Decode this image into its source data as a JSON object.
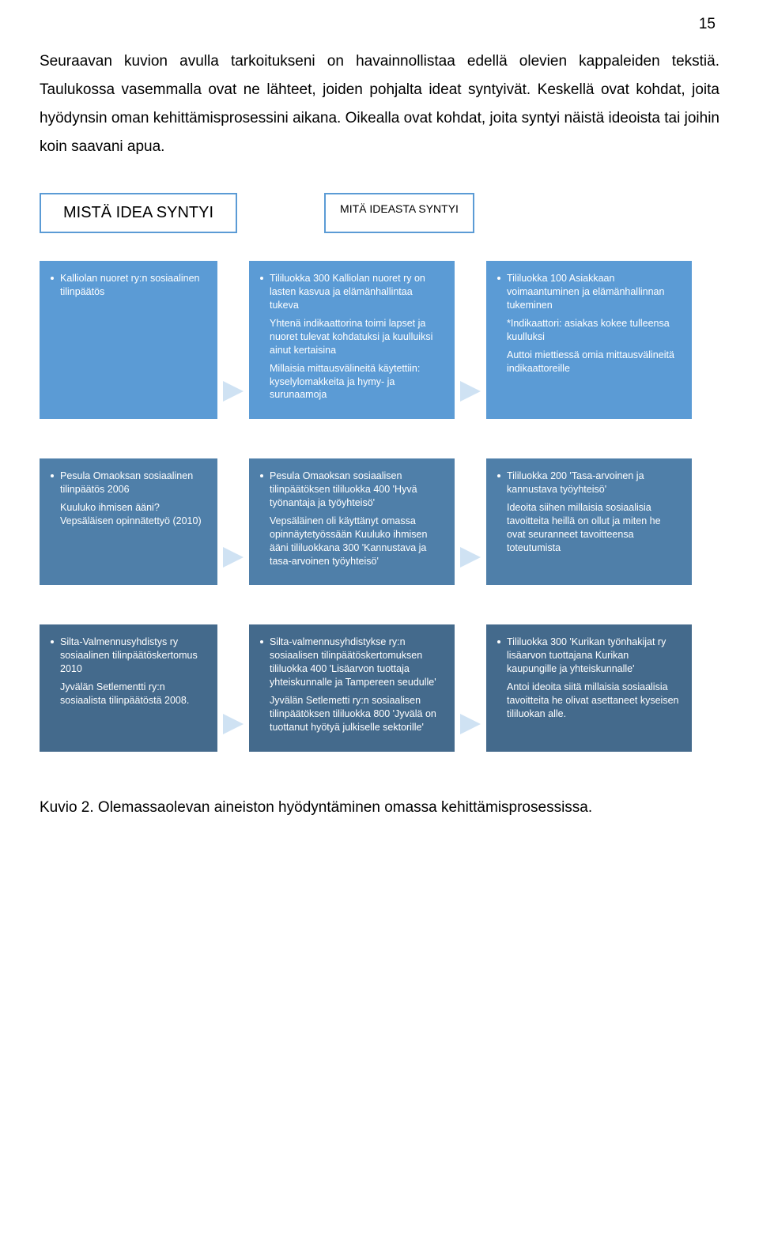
{
  "page_number": "15",
  "intro_text": "Seuraavan kuvion avulla tarkoitukseni on havainnollistaa edellä olevien kappaleiden tekstiä. Taulukossa vasemmalla ovat ne lähteet, joiden pohjalta ideat syntyivät. Keskellä ovat kohdat, joita hyödynsin oman kehittämisprosessini aikana. Oikealla ovat kohdat, joita syntyi näistä ideoista tai joihin koin saavani apua.",
  "headers": {
    "left": "MISTÄ IDEA SYNTYI",
    "right": "MITÄ IDEASTA SYNTYI"
  },
  "colors": {
    "row1": "#5b9bd5",
    "row2": "#4f7fa9",
    "row3": "#446a8c",
    "arrow": "#cfe2f3",
    "border": "#5b9bd5"
  },
  "rows": [
    {
      "color": "#5b9bd5",
      "left": {
        "bullets": [
          "Kalliolan nuoret ry:n sosiaalinen tilinpäätös"
        ]
      },
      "middle": {
        "bullets": [
          "Tililuokka 300 Kalliolan nuoret ry on lasten kasvua ja elämänhallintaa tukeva"
        ],
        "subs": [
          "Yhtenä indikaattorina toimi lapset ja nuoret tulevat kohdatuksi ja kuulluiksi ainut kertaisina",
          "Millaisia mittausvälineitä käytettiin: kyselylomakkeita ja hymy- ja surunaamoja"
        ]
      },
      "right": {
        "bullets": [
          "Tililuokka 100 Asiakkaan voimaantuminen ja elämänhallinnan tukeminen"
        ],
        "subs": [
          "*Indikaattori: asiakas kokee tulleensa kuulluksi",
          "Auttoi miettiessä omia mittausvälineitä indikaattoreille"
        ]
      }
    },
    {
      "color": "#4f7fa9",
      "left": {
        "bullets": [
          "Pesula Omaoksan sosiaalinen tilinpäätös 2006"
        ],
        "subs": [
          "Kuuluko ihmisen ääni? Vepsäläisen opinnätettyö (2010)"
        ]
      },
      "middle": {
        "bullets": [
          "Pesula Omaoksan sosiaalisen tilinpäätöksen tililuokka 400 'Hyvä työnantaja ja työyhteisö'"
        ],
        "subs": [
          "Vepsäläinen oli käyttänyt omassa opinnäytetyössään Kuuluko ihmisen ääni tililuokkana 300 'Kannustava ja tasa-arvoinen työyhteisö'"
        ]
      },
      "right": {
        "bullets": [
          "Tililuokka 200 'Tasa-arvoinen ja kannustava työyhteisö'"
        ],
        "subs": [
          "Ideoita siihen millaisia sosiaalisia tavoitteita heillä on ollut ja miten he ovat seuranneet tavoitteensa toteutumista"
        ]
      }
    },
    {
      "color": "#446a8c",
      "left": {
        "bullets": [
          "Silta-Valmennusyhdistys ry sosiaalinen tilinpäätöskertomus 2010"
        ],
        "subs": [
          "Jyvälän Setlementti ry:n sosiaalista tilinpäätöstä 2008."
        ]
      },
      "middle": {
        "bullets": [
          "Silta-valmennusyhdistykse ry:n sosiaalisen tilinpäätöskertomuksen tililuokka 400 'Lisäarvon tuottaja yhteiskunnalle ja Tampereen seudulle'"
        ],
        "subs": [
          "Jyvälän Setlemetti ry:n sosiaalisen tilinpäätöksen tililuokka 800 'Jyvälä on tuottanut hyötyä julkiselle sektorille'"
        ]
      },
      "right": {
        "bullets": [
          "Tililuokka 300 'Kurikan työnhakijat ry lisäarvon tuottajana Kurikan kaupungille ja yhteiskunnalle'"
        ],
        "subs": [
          "Antoi ideoita siitä millaisia sosiaalisia tavoitteita he olivat asettaneet kyseisen tililuokan alle."
        ]
      }
    }
  ],
  "caption": "Kuvio 2. Olemassaolevan aineiston hyödyntäminen omassa kehittämisprosessissa."
}
